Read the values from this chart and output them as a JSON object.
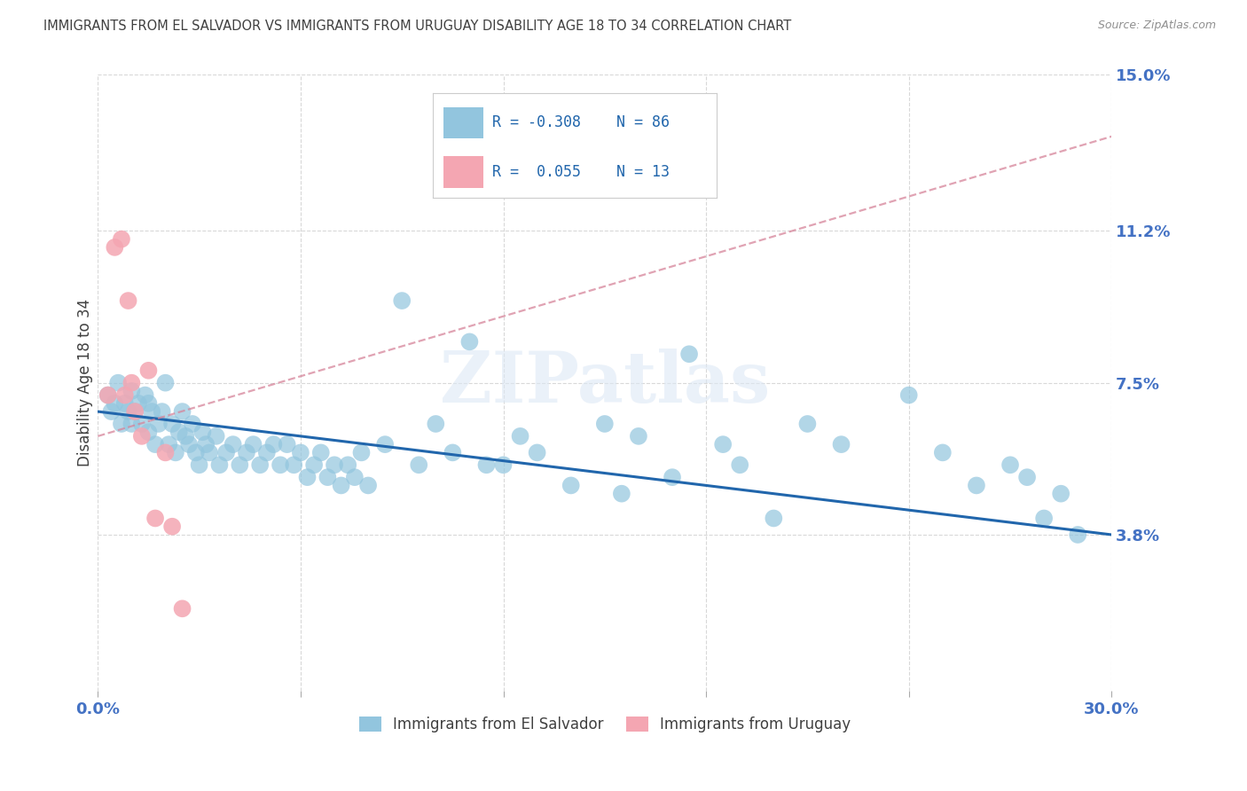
{
  "title": "IMMIGRANTS FROM EL SALVADOR VS IMMIGRANTS FROM URUGUAY DISABILITY AGE 18 TO 34 CORRELATION CHART",
  "source": "Source: ZipAtlas.com",
  "ylabel": "Disability Age 18 to 34",
  "xlim": [
    0.0,
    0.3
  ],
  "ylim": [
    0.0,
    0.15
  ],
  "ytick_labels": [
    "3.8%",
    "7.5%",
    "11.2%",
    "15.0%"
  ],
  "ytick_values": [
    0.038,
    0.075,
    0.112,
    0.15
  ],
  "blue_color": "#92c5de",
  "pink_color": "#f4a6b2",
  "blue_line_color": "#2166ac",
  "pink_line_color": "#d6849a",
  "axis_label_color": "#4472c4",
  "title_color": "#404040",
  "legend_R1": "-0.308",
  "legend_N1": "86",
  "legend_R2": "0.055",
  "legend_N2": "13",
  "blue_scatter_x": [
    0.003,
    0.004,
    0.005,
    0.006,
    0.007,
    0.008,
    0.009,
    0.01,
    0.01,
    0.011,
    0.012,
    0.013,
    0.014,
    0.015,
    0.015,
    0.016,
    0.017,
    0.018,
    0.019,
    0.02,
    0.021,
    0.022,
    0.023,
    0.024,
    0.025,
    0.026,
    0.027,
    0.028,
    0.029,
    0.03,
    0.031,
    0.032,
    0.033,
    0.035,
    0.036,
    0.038,
    0.04,
    0.042,
    0.044,
    0.046,
    0.048,
    0.05,
    0.052,
    0.054,
    0.056,
    0.058,
    0.06,
    0.062,
    0.064,
    0.066,
    0.068,
    0.07,
    0.072,
    0.074,
    0.076,
    0.078,
    0.08,
    0.085,
    0.09,
    0.095,
    0.1,
    0.105,
    0.11,
    0.115,
    0.12,
    0.125,
    0.13,
    0.14,
    0.15,
    0.155,
    0.16,
    0.17,
    0.175,
    0.185,
    0.19,
    0.2,
    0.21,
    0.22,
    0.24,
    0.25,
    0.26,
    0.27,
    0.275,
    0.28,
    0.285,
    0.29
  ],
  "blue_scatter_y": [
    0.072,
    0.068,
    0.07,
    0.075,
    0.065,
    0.07,
    0.068,
    0.073,
    0.065,
    0.068,
    0.07,
    0.065,
    0.072,
    0.07,
    0.063,
    0.068,
    0.06,
    0.065,
    0.068,
    0.075,
    0.06,
    0.065,
    0.058,
    0.063,
    0.068,
    0.062,
    0.06,
    0.065,
    0.058,
    0.055,
    0.063,
    0.06,
    0.058,
    0.062,
    0.055,
    0.058,
    0.06,
    0.055,
    0.058,
    0.06,
    0.055,
    0.058,
    0.06,
    0.055,
    0.06,
    0.055,
    0.058,
    0.052,
    0.055,
    0.058,
    0.052,
    0.055,
    0.05,
    0.055,
    0.052,
    0.058,
    0.05,
    0.06,
    0.095,
    0.055,
    0.065,
    0.058,
    0.085,
    0.055,
    0.055,
    0.062,
    0.058,
    0.05,
    0.065,
    0.048,
    0.062,
    0.052,
    0.082,
    0.06,
    0.055,
    0.042,
    0.065,
    0.06,
    0.072,
    0.058,
    0.05,
    0.055,
    0.052,
    0.042,
    0.048,
    0.038
  ],
  "pink_scatter_x": [
    0.003,
    0.005,
    0.007,
    0.008,
    0.009,
    0.01,
    0.011,
    0.013,
    0.015,
    0.017,
    0.02,
    0.022,
    0.025
  ],
  "pink_scatter_y": [
    0.072,
    0.108,
    0.11,
    0.072,
    0.095,
    0.075,
    0.068,
    0.062,
    0.078,
    0.042,
    0.058,
    0.04,
    0.02
  ],
  "blue_trend_x": [
    0.0,
    0.3
  ],
  "blue_trend_y": [
    0.068,
    0.038
  ],
  "pink_trend_x": [
    0.0,
    0.3
  ],
  "pink_trend_y": [
    0.062,
    0.135
  ],
  "watermark": "ZIPatlas"
}
